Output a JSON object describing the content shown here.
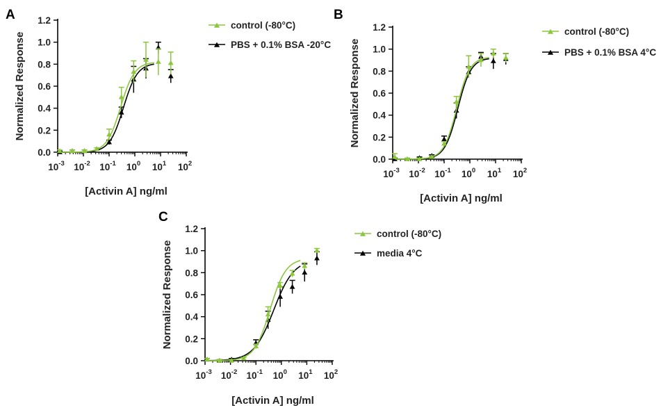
{
  "figure": {
    "colors": {
      "control": "#8CC63F",
      "test": "#000000",
      "axis": "#000000",
      "text": "#1a1a1a"
    },
    "marker": "triangle",
    "x_tick_labels": [
      {
        "base": "10",
        "exp": "-3"
      },
      {
        "base": "10",
        "exp": "-2"
      },
      {
        "base": "10",
        "exp": "-1"
      },
      {
        "base": "10",
        "exp": "0"
      },
      {
        "base": "10",
        "exp": "1"
      },
      {
        "base": "10",
        "exp": "2"
      }
    ]
  },
  "chart_data": [
    {
      "panel_label": "A",
      "type": "scatter",
      "xlabel": "[Activin A] ng/ml",
      "ylabel": "Normalized Response",
      "x_scale": "log",
      "xlim": [
        0.001,
        100
      ],
      "ylim": [
        0,
        1.2
      ],
      "y_ticks": [
        "0.0",
        "0.2",
        "0.4",
        "0.6",
        "0.8",
        "1.0",
        "1.2"
      ],
      "legend_position": "top-right",
      "series": [
        {
          "name": "control (-80°C)",
          "color": "#8CC63F",
          "points": [
            {
              "x": 0.0012,
              "y": 0.01,
              "err": 0.01
            },
            {
              "x": 0.0037,
              "y": 0.01,
              "err": 0.01
            },
            {
              "x": 0.011,
              "y": 0.01,
              "err": 0.01
            },
            {
              "x": 0.033,
              "y": 0.03,
              "err": 0.01
            },
            {
              "x": 0.1,
              "y": 0.16,
              "err": 0.05
            },
            {
              "x": 0.3,
              "y": 0.5,
              "err": 0.09
            },
            {
              "x": 0.9,
              "y": 0.73,
              "err": 0.1
            },
            {
              "x": 2.7,
              "y": 0.84,
              "err": 0.16
            },
            {
              "x": 8.2,
              "y": 0.82,
              "err": 0.12
            },
            {
              "x": 25,
              "y": 0.81,
              "err": 0.1
            }
          ],
          "fit": {
            "bottom": 0.0,
            "top": 0.82,
            "ec50": 0.28,
            "hill": 1.6
          }
        },
        {
          "name": "PBS + 0.1% BSA -20°C",
          "color": "#000000",
          "points": [
            {
              "x": 0.0012,
              "y": 0.0,
              "err": 0.01
            },
            {
              "x": 0.0037,
              "y": 0.01,
              "err": 0.01
            },
            {
              "x": 0.011,
              "y": 0.01,
              "err": 0.01
            },
            {
              "x": 0.1,
              "y": 0.09,
              "err": 0.02
            },
            {
              "x": 0.3,
              "y": 0.36,
              "err": 0.05
            },
            {
              "x": 0.9,
              "y": 0.66,
              "err": 0.12
            },
            {
              "x": 2.7,
              "y": 0.76,
              "err": 0.09
            },
            {
              "x": 8.2,
              "y": 0.95,
              "err": 0.05
            },
            {
              "x": 25,
              "y": 0.69,
              "err": 0.06
            }
          ],
          "fit": {
            "bottom": 0.0,
            "top": 0.81,
            "ec50": 0.36,
            "hill": 1.6
          }
        }
      ]
    },
    {
      "panel_label": "B",
      "type": "scatter",
      "xlabel": "[Activin A] ng/ml",
      "ylabel": "Normalized Response",
      "x_scale": "log",
      "xlim": [
        0.001,
        100
      ],
      "ylim": [
        0,
        1.2
      ],
      "y_ticks": [
        "0.0",
        "0.2",
        "0.4",
        "0.6",
        "0.8",
        "1.0",
        "1.2"
      ],
      "legend_position": "top-right",
      "series": [
        {
          "name": "control (-80°C)",
          "color": "#8CC63F",
          "points": [
            {
              "x": 0.0012,
              "y": 0.02,
              "err": 0.03
            },
            {
              "x": 0.0037,
              "y": 0.0,
              "err": 0.01
            },
            {
              "x": 0.011,
              "y": 0.0,
              "err": 0.01
            },
            {
              "x": 0.033,
              "y": 0.02,
              "err": 0.01
            },
            {
              "x": 0.1,
              "y": 0.14,
              "err": 0.02
            },
            {
              "x": 0.3,
              "y": 0.52,
              "err": 0.05
            },
            {
              "x": 0.9,
              "y": 0.84,
              "err": 0.1
            },
            {
              "x": 2.7,
              "y": 0.9,
              "err": 0.06
            },
            {
              "x": 8.2,
              "y": 0.96,
              "err": 0.04
            },
            {
              "x": 25,
              "y": 0.92,
              "err": 0.04
            }
          ],
          "fit": {
            "bottom": 0.0,
            "top": 0.93,
            "ec50": 0.31,
            "hill": 1.7
          }
        },
        {
          "name": "PBS + 0.1% BSA 4°C",
          "color": "#000000",
          "points": [
            {
              "x": 0.0012,
              "y": 0.0,
              "err": 0.01
            },
            {
              "x": 0.011,
              "y": 0.01,
              "err": 0.01
            },
            {
              "x": 0.033,
              "y": 0.03,
              "err": 0.01
            },
            {
              "x": 0.1,
              "y": 0.18,
              "err": 0.03
            },
            {
              "x": 0.3,
              "y": 0.44,
              "err": 0.07
            },
            {
              "x": 0.9,
              "y": 0.79,
              "err": 0.05
            },
            {
              "x": 2.7,
              "y": 0.93,
              "err": 0.04
            },
            {
              "x": 8.2,
              "y": 0.89,
              "err": 0.07
            },
            {
              "x": 25,
              "y": 0.91,
              "err": 0.05
            }
          ],
          "fit": {
            "bottom": 0.0,
            "top": 0.92,
            "ec50": 0.34,
            "hill": 1.7
          }
        }
      ]
    },
    {
      "panel_label": "C",
      "type": "scatter",
      "xlabel": "[Activin A] ng/ml",
      "ylabel": "Normalized Response",
      "x_scale": "log",
      "xlim": [
        0.001,
        100
      ],
      "ylim": [
        0,
        1.2
      ],
      "y_ticks": [
        "0.0",
        "0.2",
        "0.4",
        "0.6",
        "0.8",
        "1.0",
        "1.2"
      ],
      "legend_position": "top-right",
      "series": [
        {
          "name": "control (-80°C)",
          "color": "#8CC63F",
          "points": [
            {
              "x": 0.0012,
              "y": 0.01,
              "err": 0.01
            },
            {
              "x": 0.0037,
              "y": 0.0,
              "err": 0.01
            },
            {
              "x": 0.011,
              "y": 0.0,
              "err": 0.01
            },
            {
              "x": 0.033,
              "y": 0.02,
              "err": 0.01
            },
            {
              "x": 0.1,
              "y": 0.13,
              "err": 0.02
            },
            {
              "x": 0.3,
              "y": 0.42,
              "err": 0.07
            },
            {
              "x": 0.9,
              "y": 0.68,
              "err": 0.03
            },
            {
              "x": 2.7,
              "y": 0.79,
              "err": 0.03
            },
            {
              "x": 8.2,
              "y": 0.86,
              "err": 0.03
            },
            {
              "x": 25,
              "y": 1.0,
              "err": 0.02
            }
          ],
          "fit": {
            "bottom": 0.0,
            "top": 0.93,
            "ec50": 0.36,
            "hill": 1.4
          }
        },
        {
          "name": "media 4°C",
          "color": "#000000",
          "points": [
            {
              "x": 0.0012,
              "y": 0.01,
              "err": 0.01
            },
            {
              "x": 0.0037,
              "y": 0.0,
              "err": 0.01
            },
            {
              "x": 0.011,
              "y": 0.01,
              "err": 0.01
            },
            {
              "x": 0.1,
              "y": 0.16,
              "err": 0.03
            },
            {
              "x": 0.3,
              "y": 0.37,
              "err": 0.08
            },
            {
              "x": 0.9,
              "y": 0.58,
              "err": 0.09
            },
            {
              "x": 2.7,
              "y": 0.67,
              "err": 0.06
            },
            {
              "x": 8.2,
              "y": 0.8,
              "err": 0.08
            },
            {
              "x": 25,
              "y": 0.93,
              "err": 0.06
            }
          ],
          "fit": {
            "bottom": 0.0,
            "top": 0.92,
            "ec50": 0.5,
            "hill": 1.1
          }
        }
      ]
    }
  ]
}
